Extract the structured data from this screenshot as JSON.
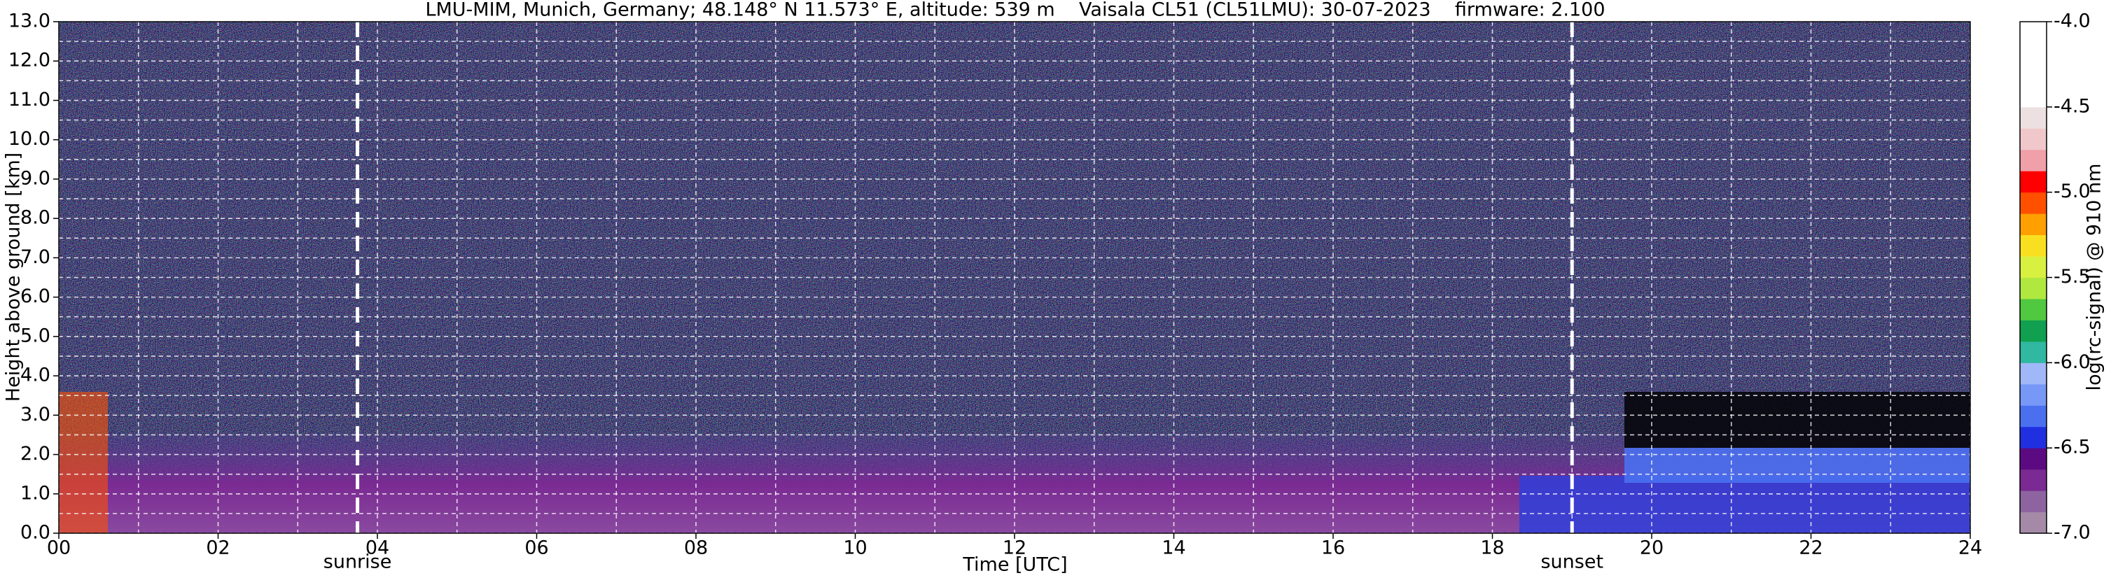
{
  "chart_data": {
    "type": "heatmap",
    "title": "LMU-MIM, Munich, Germany; 48.148° N 11.573° E, altitude: 539 m    Vaisala CL51 (CL51LMU): 30-07-2023    firmware: 2.100",
    "xlabel": "Time [UTC]",
    "ylabel": "Height above ground [km]",
    "xlim": [
      0,
      24
    ],
    "xticks": [
      {
        "value": 0,
        "label": "00"
      },
      {
        "value": 2,
        "label": "02"
      },
      {
        "value": 4,
        "label": "04"
      },
      {
        "value": 6,
        "label": "06"
      },
      {
        "value": 8,
        "label": "08"
      },
      {
        "value": 10,
        "label": "10"
      },
      12,
      14,
      16,
      18,
      20,
      22,
      24
    ],
    "xminor_ticks": [
      1,
      3,
      5,
      7,
      9,
      11,
      13,
      15,
      17,
      19,
      21,
      23
    ],
    "ylim": [
      0,
      13
    ],
    "yticks": [
      {
        "value": 0,
        "label": "0.0"
      },
      {
        "value": 1,
        "label": "1.0"
      },
      {
        "value": 2,
        "label": "2.0"
      },
      {
        "value": 3,
        "label": "3.0"
      },
      {
        "value": 4,
        "label": "4.0"
      },
      {
        "value": 5,
        "label": "5.0"
      },
      {
        "value": 6,
        "label": "6.0"
      },
      {
        "value": 7,
        "label": "7.0"
      },
      {
        "value": 8,
        "label": "8.0"
      },
      {
        "value": 9,
        "label": "9.0"
      },
      {
        "value": 10,
        "label": "10.0"
      },
      {
        "value": 11,
        "label": "11.0"
      },
      {
        "value": 12,
        "label": "12.0"
      },
      {
        "value": 13,
        "label": "13.0"
      }
    ],
    "yminor_ticks": [
      0.5,
      1.5,
      2.5,
      3.5,
      4.5,
      5.5,
      6.5,
      7.5,
      8.5,
      9.5,
      10.5,
      11.5,
      12.5
    ],
    "grid": true,
    "annotations": [
      {
        "label": "sunrise",
        "x": 3.75
      },
      {
        "label": "sunset",
        "x": 19.0
      }
    ],
    "colorbar": {
      "label": "log(rc-signal) @ 910 nm",
      "lim": [
        -7,
        -4
      ],
      "ticks": [
        {
          "value": -4,
          "label": "-4.0"
        },
        {
          "value": -4.5,
          "label": "-4.5"
        },
        {
          "value": -5,
          "label": "-5.0"
        },
        {
          "value": -5.5,
          "label": "-5.5"
        },
        {
          "value": -6,
          "label": "-6.0"
        },
        {
          "value": -6.5,
          "label": "-6.5"
        },
        {
          "value": -7,
          "label": "-7.0"
        }
      ],
      "colors": [
        "#a58aa8",
        "#8d64a0",
        "#7a2a92",
        "#5c0a82",
        "#2030e0",
        "#4a70f0",
        "#7898f8",
        "#a0b8f8",
        "#30b8a0",
        "#10a050",
        "#50c840",
        "#b0e840",
        "#d8f040",
        "#f8e020",
        "#ffa000",
        "#ff5000",
        "#ff0000",
        "#f0a0a8",
        "#f0c8cc",
        "#ece0e0",
        "#ffffff",
        "#ffffff",
        "#ffffff",
        "#ffffff"
      ]
    }
  }
}
